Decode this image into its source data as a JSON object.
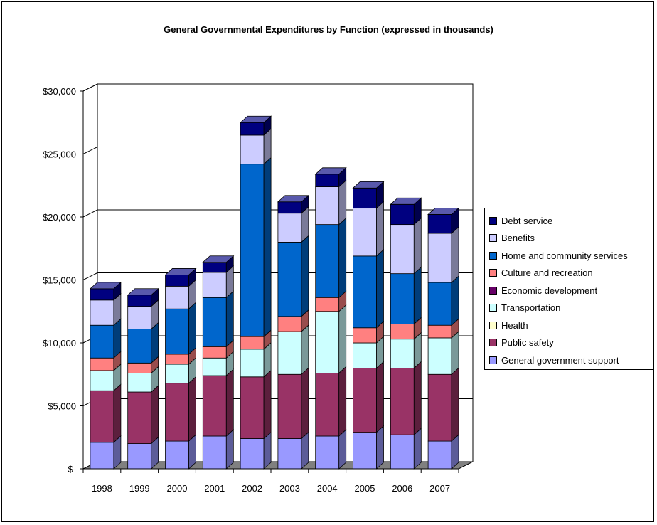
{
  "chart_data": {
    "type": "bar",
    "stacked": true,
    "title": "General Governmental Expenditures by Function (expressed in thousands)",
    "categories": [
      "1998",
      "1999",
      "2000",
      "2001",
      "2002",
      "2003",
      "2004",
      "2005",
      "2006",
      "2007"
    ],
    "ylim": [
      0,
      30000
    ],
    "yticks": [
      {
        "value": 0,
        "label": "$-"
      },
      {
        "value": 5000,
        "label": "$5,000"
      },
      {
        "value": 10000,
        "label": "$10,000"
      },
      {
        "value": 15000,
        "label": "$15,000"
      },
      {
        "value": 20000,
        "label": "$20,000"
      },
      {
        "value": 25000,
        "label": "$25,000"
      },
      {
        "value": 30000,
        "label": "$30,000"
      }
    ],
    "grid": true,
    "legend_position": "right",
    "series": [
      {
        "name": "General government support",
        "color": "#9999ff",
        "values": [
          2100,
          2000,
          2200,
          2600,
          2400,
          2400,
          2600,
          2900,
          2700,
          2200
        ]
      },
      {
        "name": "Public safety",
        "color": "#993366",
        "values": [
          4100,
          4100,
          4600,
          4800,
          4900,
          5100,
          5000,
          5100,
          5300,
          5300
        ]
      },
      {
        "name": "Health",
        "color": "#ffffcc",
        "values": [
          0,
          0,
          0,
          0,
          0,
          0,
          0,
          0,
          0,
          0
        ]
      },
      {
        "name": "Transportation",
        "color": "#ccffff",
        "values": [
          1600,
          1500,
          1500,
          1400,
          2200,
          3400,
          4900,
          2000,
          2300,
          2900
        ]
      },
      {
        "name": "Economic development",
        "color": "#660066",
        "values": [
          0,
          0,
          0,
          0,
          0,
          0,
          0,
          0,
          0,
          0
        ]
      },
      {
        "name": "Culture and recreation",
        "color": "#ff8080",
        "values": [
          1000,
          800,
          800,
          900,
          1000,
          1200,
          1100,
          1200,
          1200,
          1000
        ]
      },
      {
        "name": "Home and community services",
        "color": "#0066cc",
        "values": [
          2600,
          2700,
          3600,
          3900,
          13700,
          5900,
          5800,
          5700,
          4000,
          3400
        ]
      },
      {
        "name": "Benefits",
        "color": "#ccccff",
        "values": [
          2000,
          1800,
          1800,
          2000,
          2300,
          2300,
          3000,
          3800,
          3900,
          3900
        ]
      },
      {
        "name": "Debt service",
        "color": "#000080",
        "values": [
          900,
          900,
          900,
          800,
          1000,
          900,
          1000,
          1600,
          1600,
          1500
        ]
      }
    ]
  }
}
